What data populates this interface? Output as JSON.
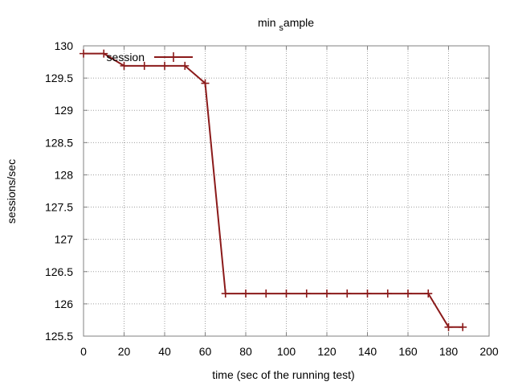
{
  "chart_data": {
    "type": "line",
    "title": {
      "prefix": "min ",
      "subscript": "s",
      "suffix": "ample"
    },
    "xlabel": "time (sec of the running test)",
    "ylabel": "sessions/sec",
    "xlim": [
      0,
      200
    ],
    "ylim": [
      125.5,
      130
    ],
    "x_ticks": [
      0,
      20,
      40,
      60,
      80,
      100,
      120,
      140,
      160,
      180,
      200
    ],
    "x_tick_labels": [
      "0",
      "20",
      "40",
      "60",
      "80",
      "100",
      "120",
      "140",
      "160",
      "180",
      "200"
    ],
    "y_ticks": [
      125.5,
      126,
      126.5,
      127,
      127.5,
      128,
      128.5,
      129,
      129.5,
      130
    ],
    "y_tick_labels": [
      "125.5",
      "126",
      "126.5",
      "127",
      "127.5",
      "128",
      "128.5",
      "129",
      "129.5",
      "130"
    ],
    "grid": true,
    "legend_position": "top-left",
    "series": [
      {
        "name": "session",
        "color": "#8b1a1a",
        "marker": "plus",
        "x": [
          0,
          10,
          20,
          30,
          40,
          50,
          60,
          70,
          80,
          90,
          100,
          110,
          120,
          130,
          140,
          150,
          160,
          170,
          180,
          187
        ],
        "y": [
          129.88,
          129.88,
          129.69,
          129.69,
          129.69,
          129.69,
          129.42,
          126.16,
          126.16,
          126.16,
          126.16,
          126.16,
          126.16,
          126.16,
          126.16,
          126.16,
          126.16,
          126.16,
          125.64,
          125.64
        ]
      }
    ]
  }
}
